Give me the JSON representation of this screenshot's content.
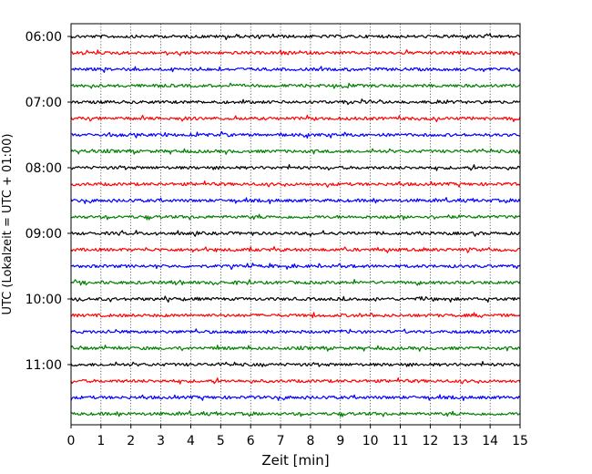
{
  "chart_data": {
    "type": "line",
    "title": "",
    "xlabel": "Zeit  [min]",
    "ylabel": "UTC (Lokalzeit = UTC + 01:00)",
    "xlim": [
      0,
      15
    ],
    "x_ticks": [
      "0",
      "1",
      "2",
      "3",
      "4",
      "5",
      "6",
      "7",
      "8",
      "9",
      "10",
      "11",
      "12",
      "13",
      "14",
      "15"
    ],
    "y_tick_labels": [
      "06:00",
      "07:00",
      "08:00",
      "09:00",
      "10:00",
      "11:00"
    ],
    "grid": "vertical dotted lines at each minute",
    "legend": "none",
    "trace_interval_minutes": 15,
    "trace_start": "06:00",
    "trace_count": 24,
    "color_cycle": [
      "#000000",
      "#ff0000",
      "#0000ff",
      "#008000"
    ]
  }
}
